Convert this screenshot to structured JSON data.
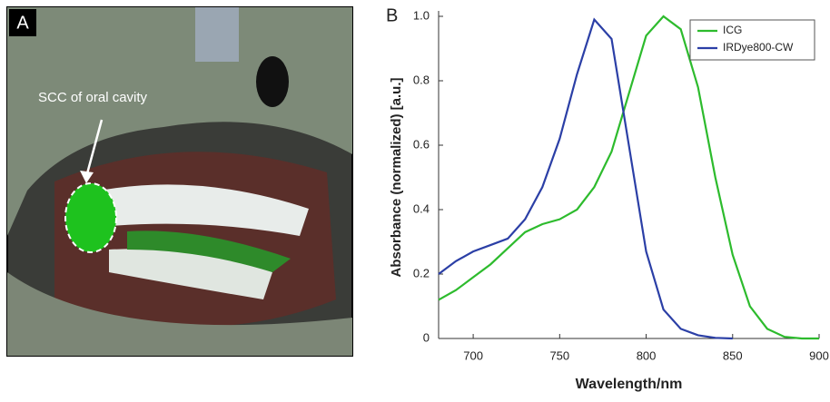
{
  "photo_panel": {
    "label": "A",
    "annotation": "SCC of oral cavity"
  },
  "chart_data": {
    "type": "line",
    "panel_label": "B",
    "x_label": "Wavelength/nm",
    "y_label": "Absorbance (normalized) [a.u.]",
    "x": [
      680,
      690,
      700,
      710,
      720,
      730,
      740,
      750,
      760,
      770,
      780,
      790,
      800,
      810,
      820,
      830,
      840,
      850,
      860,
      870,
      880,
      890,
      900
    ],
    "series": [
      {
        "name": "ICG",
        "color": "#2dbb2d",
        "values": [
          0.12,
          0.15,
          0.19,
          0.23,
          0.28,
          0.33,
          0.355,
          0.37,
          0.4,
          0.47,
          0.58,
          0.76,
          0.94,
          1.0,
          0.96,
          0.78,
          0.5,
          0.26,
          0.1,
          0.03,
          0.005,
          0,
          0
        ]
      },
      {
        "name": "IRDye800-CW",
        "color": "#2b3fa6",
        "values": [
          0.2,
          0.24,
          0.27,
          0.29,
          0.31,
          0.37,
          0.47,
          0.62,
          0.82,
          0.99,
          0.93,
          0.6,
          0.27,
          0.09,
          0.03,
          0.01,
          0.002,
          0,
          null,
          null,
          null,
          null,
          null
        ]
      }
    ],
    "xlim": [
      680,
      900
    ],
    "ylim": [
      0,
      1
    ],
    "xticks": [
      700,
      750,
      800,
      850,
      900
    ],
    "yticks": [
      0,
      0.2,
      0.4,
      0.6,
      0.8,
      {
        "value": 1,
        "label": "1.0"
      }
    ],
    "grid": false,
    "legend": "upper right"
  }
}
